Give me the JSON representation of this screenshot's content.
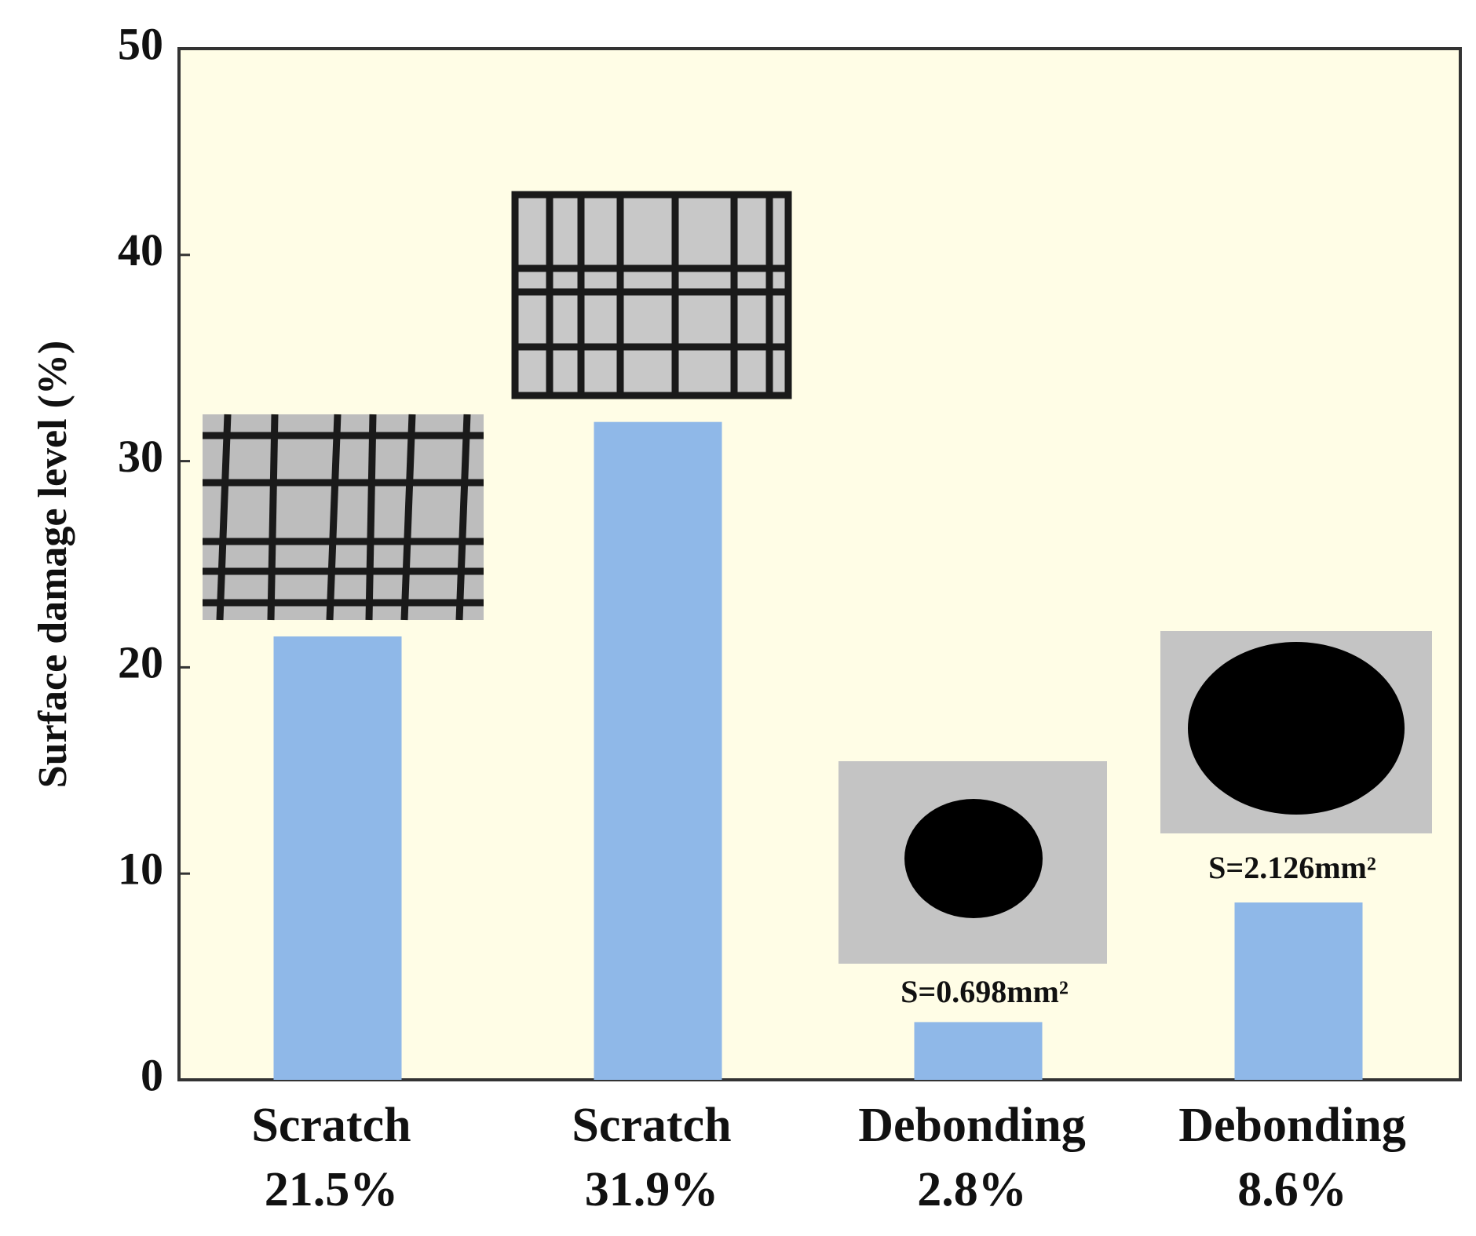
{
  "chart_data": {
    "type": "bar",
    "y_label": "Surface damage level (%)",
    "categories": [
      "Scratch",
      "Scratch",
      "Debonding",
      "Debonding"
    ],
    "values": [
      21.5,
      31.9,
      2.8,
      8.6
    ],
    "value_labels": [
      "21.5%",
      "31.9%",
      "2.8%",
      "8.6%"
    ],
    "color": "#8fb8e8",
    "background": "#fffde6",
    "ylim": [
      0,
      50
    ],
    "yticks": [
      0,
      10,
      20,
      30,
      40,
      50
    ],
    "annotations": [
      "S=0.698mm²",
      "S=2.126mm²"
    ]
  }
}
